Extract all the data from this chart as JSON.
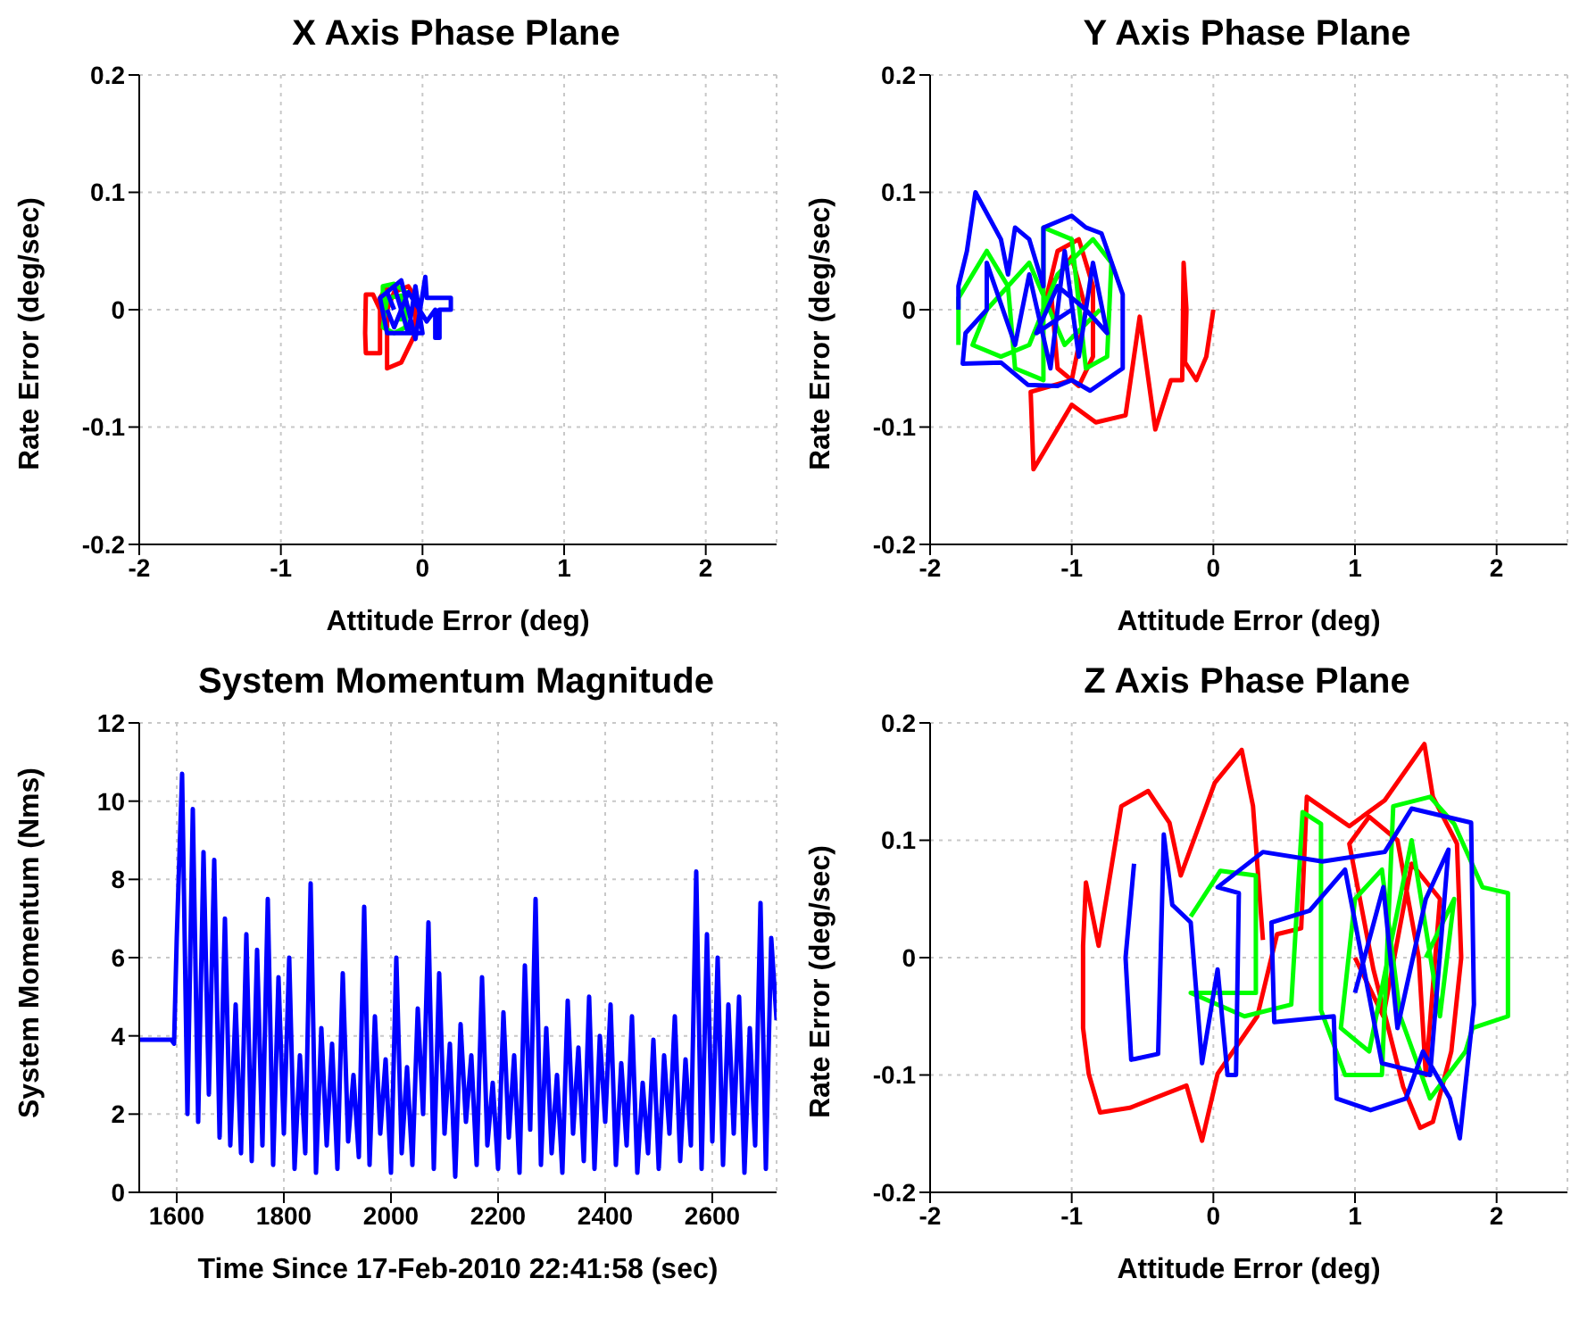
{
  "chart_data": [
    {
      "type": "line",
      "title": "X Axis Phase Plane",
      "xlabel": "Attitude Error (deg)",
      "ylabel": "Rate Error (deg/sec)",
      "xlim": [
        -2,
        2.5
      ],
      "ylim": [
        -0.2,
        0.2
      ],
      "xticks": [
        -2,
        -1,
        0,
        1,
        2
      ],
      "yticks": [
        -0.2,
        -0.1,
        0,
        0.1,
        0.2
      ],
      "grid": true,
      "legend": false,
      "marker": "none",
      "series": [
        {
          "color": "#ff0000",
          "x": [
            -0.3,
            -0.35,
            -0.4,
            -0.405,
            -0.4,
            -0.3,
            -0.3,
            -0.25,
            -0.25,
            -0.15,
            -0.05,
            -0.05,
            -0.1,
            -0.2,
            -0.25
          ],
          "values": [
            0.0,
            0.013,
            0.013,
            -0.02,
            -0.037,
            -0.037,
            0.01,
            0.02,
            -0.05,
            -0.045,
            -0.02,
            0.01,
            0.02,
            0.015,
            0.0
          ]
        },
        {
          "color": "#00ff00",
          "x": [
            -0.28,
            -0.28,
            -0.2,
            -0.12,
            -0.12,
            -0.2,
            -0.28,
            -0.25,
            -0.15,
            -0.15
          ],
          "values": [
            0.0,
            0.02,
            0.022,
            0.015,
            -0.015,
            -0.02,
            -0.015,
            0.01,
            0.012,
            -0.01
          ]
        },
        {
          "color": "#0000ff",
          "x": [
            -0.2,
            -0.25,
            -0.2,
            -0.1,
            -0.05,
            0.0,
            -0.25,
            -0.3,
            -0.15,
            -0.05,
            0.02,
            0.03,
            0.2,
            0.2,
            0.12,
            0.12,
            0.09,
            0.09,
            0.03,
            -0.1,
            -0.2,
            -0.25
          ],
          "values": [
            0.0,
            0.015,
            0.02,
            -0.02,
            0.02,
            -0.02,
            -0.02,
            0.01,
            0.025,
            -0.025,
            0.028,
            0.01,
            0.01,
            0.0,
            0.0,
            -0.024,
            -0.024,
            0.0,
            -0.01,
            0.015,
            -0.015,
            0.0
          ]
        }
      ]
    },
    {
      "type": "line",
      "title": "Y Axis Phase Plane",
      "xlabel": "Attitude Error (deg)",
      "ylabel": "Rate Error (deg/sec)",
      "xlim": [
        -2,
        2.5
      ],
      "ylim": [
        -0.2,
        0.2
      ],
      "xticks": [
        -2,
        -1,
        0,
        1,
        2
      ],
      "yticks": [
        -0.2,
        -0.1,
        0,
        0.1,
        0.2
      ],
      "grid": true,
      "legend": false,
      "marker": "none",
      "series": [
        {
          "color": "#ff0000",
          "x": [
            -1.2,
            -1.1,
            -0.95,
            -0.85,
            -0.85,
            -0.95,
            -1.1,
            -1.15,
            -1.0,
            -0.9,
            -1.0,
            -1.29,
            -1.27,
            -1.0,
            -0.83,
            -0.62,
            -0.52,
            -0.41,
            -0.3,
            -0.22,
            -0.21,
            -0.19,
            -0.2,
            -0.12,
            -0.05,
            0.0
          ],
          "values": [
            0.0,
            0.05,
            0.06,
            0.02,
            -0.04,
            -0.065,
            -0.05,
            0.02,
            0.045,
            0.0,
            -0.06,
            -0.07,
            -0.136,
            -0.081,
            -0.096,
            -0.09,
            -0.006,
            -0.102,
            -0.06,
            -0.06,
            0.04,
            0.0,
            -0.045,
            -0.06,
            -0.04,
            0.0
          ]
        },
        {
          "color": "#00ff00",
          "x": [
            -1.8,
            -1.8,
            -1.6,
            -1.45,
            -1.4,
            -1.2,
            -1.2,
            -1.0,
            -0.9,
            -0.75,
            -0.72,
            -0.85,
            -1.1,
            -1.3,
            -1.5,
            -1.7,
            -1.6,
            -1.3,
            -1.05,
            -0.8
          ],
          "values": [
            -0.03,
            0.01,
            0.05,
            0.02,
            -0.05,
            -0.06,
            0.07,
            0.06,
            -0.05,
            -0.04,
            0.04,
            0.06,
            0.03,
            -0.03,
            -0.04,
            -0.03,
            0.0,
            0.04,
            -0.03,
            0.0
          ]
        },
        {
          "color": "#0000ff",
          "x": [
            -1.8,
            -1.8,
            -1.74,
            -1.68,
            -1.5,
            -1.45,
            -1.4,
            -1.3,
            -1.2,
            -1.2,
            -1.0,
            -0.9,
            -0.79,
            -0.64,
            -0.64,
            -0.87,
            -1.0,
            -1.1,
            -1.31,
            -1.5,
            -1.77,
            -1.75,
            -1.6,
            -1.6,
            -1.4,
            -1.3,
            -1.15,
            -1.05,
            -0.95,
            -0.85,
            -0.75,
            -0.9,
            -1.1,
            -1.25,
            -1.0
          ],
          "values": [
            0.0,
            0.02,
            0.05,
            0.1,
            0.06,
            0.03,
            0.07,
            0.06,
            0.02,
            0.07,
            0.08,
            0.07,
            0.065,
            0.013,
            -0.05,
            -0.069,
            -0.06,
            -0.065,
            -0.064,
            -0.045,
            -0.046,
            -0.02,
            0.0,
            0.04,
            -0.03,
            0.03,
            -0.05,
            0.05,
            -0.04,
            0.04,
            -0.02,
            0.0,
            0.02,
            -0.02,
            0.0
          ]
        }
      ]
    },
    {
      "type": "line",
      "title": "System Momentum Magnitude",
      "xlabel": "Time Since 17-Feb-2010 22:41:58 (sec)",
      "ylabel": "System Momentum (Nms)",
      "xlim": [
        1530,
        2720
      ],
      "ylim": [
        0,
        12
      ],
      "xticks": [
        1600,
        1800,
        2000,
        2200,
        2400,
        2600
      ],
      "yticks": [
        0,
        2,
        4,
        6,
        8,
        10,
        12
      ],
      "grid": true,
      "legend": false,
      "marker": "none",
      "series": [
        {
          "color": "#0000ff",
          "x": [
            1530,
            1590,
            1595,
            1600,
            1610,
            1620,
            1630,
            1640,
            1650,
            1660,
            1670,
            1680,
            1690,
            1700,
            1710,
            1720,
            1730,
            1740,
            1750,
            1760,
            1770,
            1780,
            1790,
            1800,
            1810,
            1820,
            1830,
            1840,
            1850,
            1860,
            1870,
            1880,
            1890,
            1900,
            1910,
            1920,
            1930,
            1940,
            1950,
            1960,
            1970,
            1980,
            1990,
            2000,
            2010,
            2020,
            2030,
            2040,
            2050,
            2060,
            2070,
            2080,
            2090,
            2100,
            2110,
            2120,
            2130,
            2140,
            2150,
            2160,
            2170,
            2180,
            2190,
            2200,
            2210,
            2220,
            2230,
            2240,
            2250,
            2260,
            2270,
            2280,
            2290,
            2300,
            2310,
            2320,
            2330,
            2340,
            2350,
            2360,
            2370,
            2380,
            2390,
            2400,
            2410,
            2420,
            2430,
            2440,
            2450,
            2460,
            2470,
            2480,
            2490,
            2500,
            2510,
            2520,
            2530,
            2540,
            2550,
            2560,
            2570,
            2580,
            2590,
            2600,
            2610,
            2620,
            2630,
            2640,
            2650,
            2660,
            2670,
            2680,
            2690,
            2700,
            2710,
            2720
          ],
          "values": [
            3.9,
            3.9,
            3.8,
            6.5,
            10.7,
            2.0,
            9.8,
            1.8,
            8.7,
            2.5,
            8.5,
            1.4,
            7.0,
            1.2,
            4.8,
            1.0,
            6.6,
            0.8,
            6.2,
            1.2,
            7.5,
            0.7,
            5.5,
            1.5,
            6.0,
            0.6,
            3.5,
            1.0,
            7.9,
            0.5,
            4.2,
            1.2,
            3.8,
            0.6,
            5.6,
            1.3,
            3.0,
            0.9,
            7.3,
            0.7,
            4.5,
            1.5,
            3.4,
            0.5,
            6.0,
            1.0,
            3.2,
            0.7,
            4.7,
            2.0,
            6.9,
            0.6,
            5.6,
            1.5,
            3.8,
            0.4,
            4.3,
            1.8,
            3.5,
            0.7,
            5.5,
            1.2,
            2.8,
            0.6,
            4.6,
            1.4,
            3.5,
            0.5,
            5.8,
            1.6,
            7.5,
            0.7,
            4.2,
            1.0,
            3.0,
            0.5,
            4.9,
            1.5,
            3.7,
            0.8,
            5.0,
            0.6,
            4.0,
            1.8,
            4.8,
            0.7,
            3.3,
            1.2,
            4.5,
            0.5,
            2.8,
            1.0,
            3.9,
            0.6,
            3.5,
            1.5,
            4.5,
            0.8,
            3.4,
            1.2,
            8.2,
            0.6,
            6.6,
            1.3,
            6.0,
            0.7,
            4.8,
            1.5,
            5.0,
            0.5,
            4.2,
            1.2,
            7.4,
            0.6,
            6.5,
            4.4
          ]
        }
      ]
    },
    {
      "type": "line",
      "title": "Z Axis Phase Plane",
      "xlabel": "Attitude Error (deg)",
      "ylabel": "Rate Error (deg/sec)",
      "xlim": [
        -2,
        2.5
      ],
      "ylim": [
        -0.2,
        0.2
      ],
      "xticks": [
        -2,
        -1,
        0,
        1,
        2
      ],
      "yticks": [
        -0.2,
        -0.1,
        0,
        0.1,
        0.2
      ],
      "grid": true,
      "legend": false,
      "marker": "none",
      "series": [
        {
          "color": "#ff0000",
          "x": [
            0.35,
            0.28,
            0.2,
            0.01,
            -0.23,
            -0.31,
            -0.46,
            -0.65,
            -0.81,
            -0.9,
            -0.92,
            -0.92,
            -0.88,
            -0.8,
            -0.59,
            -0.19,
            -0.08,
            0.03,
            0.31,
            0.45,
            0.62,
            0.66,
            0.96,
            1.21,
            1.49,
            1.55,
            1.72,
            1.75,
            1.68,
            1.55,
            1.46,
            1.34,
            1.13,
            0.96,
            1.1,
            1.3,
            1.45,
            1.5,
            1.6,
            1.4,
            1.2,
            1.0
          ],
          "values": [
            0.015,
            0.129,
            0.177,
            0.149,
            0.07,
            0.115,
            0.142,
            0.129,
            0.01,
            0.064,
            0.01,
            -0.06,
            -0.099,
            -0.132,
            -0.128,
            -0.109,
            -0.156,
            -0.099,
            -0.05,
            0.02,
            0.025,
            0.137,
            0.112,
            0.134,
            0.182,
            0.137,
            0.097,
            0.0,
            -0.08,
            -0.14,
            -0.145,
            -0.11,
            -0.01,
            0.097,
            0.12,
            0.1,
            0.0,
            -0.1,
            0.05,
            0.08,
            -0.05,
            0.0
          ]
        },
        {
          "color": "#00ff00",
          "x": [
            -0.16,
            0.05,
            0.3,
            0.3,
            -0.16,
            0.22,
            0.55,
            0.63,
            0.76,
            0.76,
            0.93,
            1.19,
            1.27,
            1.53,
            1.7,
            1.9,
            2.08,
            2.08,
            1.83,
            1.78,
            1.53,
            1.32,
            1.19,
            1.0,
            0.9,
            1.1,
            1.4,
            1.6,
            1.7,
            1.5
          ],
          "values": [
            0.035,
            0.074,
            0.07,
            -0.03,
            -0.03,
            -0.05,
            -0.04,
            0.124,
            0.114,
            -0.045,
            -0.1,
            -0.1,
            0.129,
            0.137,
            0.114,
            0.06,
            0.055,
            -0.05,
            -0.06,
            -0.08,
            -0.12,
            -0.05,
            0.075,
            0.05,
            -0.06,
            -0.08,
            0.1,
            -0.05,
            0.05,
            0.0
          ]
        },
        {
          "color": "#0000ff",
          "x": [
            -0.56,
            -0.62,
            -0.58,
            -0.39,
            -0.35,
            -0.29,
            -0.16,
            -0.08,
            0.03,
            0.1,
            0.16,
            0.18,
            0.03,
            0.35,
            0.77,
            1.21,
            1.4,
            1.82,
            1.84,
            1.74,
            1.67,
            1.48,
            1.36,
            1.11,
            0.87,
            0.85,
            0.43,
            0.41,
            0.68,
            0.93,
            1.19,
            1.53,
            1.66,
            1.5,
            1.3,
            1.2,
            1.0
          ],
          "values": [
            0.08,
            0.0,
            -0.087,
            -0.082,
            0.105,
            0.045,
            0.03,
            -0.09,
            -0.01,
            -0.1,
            -0.1,
            0.055,
            0.06,
            0.09,
            0.082,
            0.09,
            0.127,
            0.115,
            -0.04,
            -0.154,
            -0.12,
            -0.08,
            -0.12,
            -0.13,
            -0.12,
            -0.05,
            -0.055,
            0.03,
            0.04,
            0.075,
            -0.09,
            -0.1,
            0.092,
            0.05,
            -0.06,
            0.06,
            -0.03
          ]
        }
      ]
    }
  ]
}
